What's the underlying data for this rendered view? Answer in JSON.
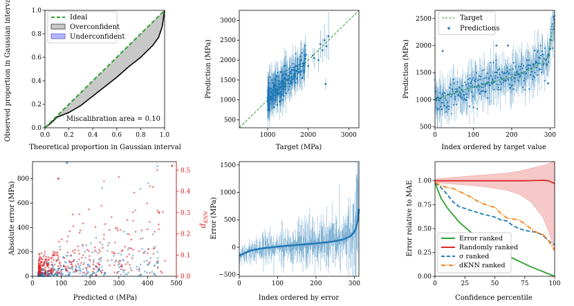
{
  "chart_data": [
    {
      "id": "calibration",
      "type": "area",
      "xlabel": "Theoretical proportion in Gaussian interval",
      "ylabel": "Observed proportion in Gaussian interval",
      "xlim": [
        0,
        1
      ],
      "ylim": [
        0,
        1
      ],
      "xticks": [
        0.0,
        0.2,
        0.4,
        0.6,
        0.8,
        1.0
      ],
      "yticks": [
        0.0,
        0.2,
        0.4,
        0.6,
        0.8,
        1.0
      ],
      "xtick_labels": [
        "0.0",
        "0.2",
        "0.4",
        "0.6",
        "0.8",
        "1.0"
      ],
      "ytick_labels": [
        "0.0",
        "0.2",
        "0.4",
        "0.6",
        "0.8",
        "1.0"
      ],
      "legend": {
        "position": "top-left",
        "entries": [
          "Ideal",
          "Overconfident",
          "Underconfident"
        ]
      },
      "annotation": "Miscalibration area = 0.10",
      "series": [
        {
          "name": "Ideal",
          "style": "dashed",
          "color": "#2ca02c",
          "x": [
            0,
            1
          ],
          "y": [
            0,
            1
          ]
        },
        {
          "name": "Observed",
          "style": "solid",
          "color": "#000000",
          "x": [
            0,
            0.05,
            0.1,
            0.15,
            0.2,
            0.3,
            0.4,
            0.5,
            0.6,
            0.7,
            0.8,
            0.9,
            0.95,
            0.98,
            1.0
          ],
          "y": [
            0,
            0.04,
            0.09,
            0.11,
            0.13,
            0.19,
            0.27,
            0.35,
            0.43,
            0.52,
            0.6,
            0.7,
            0.77,
            0.86,
            1.0
          ]
        }
      ],
      "colors": {
        "overconfident": "#c8c8c8",
        "underconfident": "#b3b3ff"
      }
    },
    {
      "id": "parity",
      "type": "scatter",
      "xlabel": "Target (MPa)",
      "ylabel": "Prediction (MPa)",
      "xlim": [
        300,
        3250
      ],
      "ylim": [
        300,
        3250
      ],
      "xticks": [
        1000,
        2000,
        3000
      ],
      "yticks": [
        500,
        1000,
        1500,
        2000,
        2500,
        3000
      ],
      "xtick_labels": [
        "1000",
        "2000",
        "3000"
      ],
      "ytick_labels": [
        "500",
        "1000",
        "1500",
        "2000",
        "2500",
        "3000"
      ],
      "points": [
        {
          "x": 1000,
          "y": 1050,
          "err": 250
        },
        {
          "x": 1020,
          "y": 1300,
          "err": 400
        },
        {
          "x": 1050,
          "y": 900,
          "err": 300
        },
        {
          "x": 1080,
          "y": 1200,
          "err": 350
        },
        {
          "x": 1100,
          "y": 1500,
          "err": 450
        },
        {
          "x": 1120,
          "y": 1100,
          "err": 200
        },
        {
          "x": 1150,
          "y": 1350,
          "err": 300
        },
        {
          "x": 1180,
          "y": 1000,
          "err": 250
        },
        {
          "x": 1200,
          "y": 1250,
          "err": 400
        },
        {
          "x": 1230,
          "y": 1600,
          "err": 350
        },
        {
          "x": 1250,
          "y": 1150,
          "err": 300
        },
        {
          "x": 1280,
          "y": 1400,
          "err": 250
        },
        {
          "x": 1300,
          "y": 1300,
          "err": 450
        },
        {
          "x": 1330,
          "y": 1700,
          "err": 300
        },
        {
          "x": 1350,
          "y": 1450,
          "err": 350
        },
        {
          "x": 1400,
          "y": 1350,
          "err": 250
        },
        {
          "x": 1420,
          "y": 1550,
          "err": 400
        },
        {
          "x": 1450,
          "y": 1650,
          "err": 300
        },
        {
          "x": 1500,
          "y": 1500,
          "err": 350
        },
        {
          "x": 1550,
          "y": 1400,
          "err": 300
        },
        {
          "x": 1600,
          "y": 1750,
          "err": 400
        },
        {
          "x": 1650,
          "y": 1600,
          "err": 250
        },
        {
          "x": 1700,
          "y": 1850,
          "err": 350
        },
        {
          "x": 1750,
          "y": 1700,
          "err": 300
        },
        {
          "x": 1800,
          "y": 1900,
          "err": 250
        },
        {
          "x": 1850,
          "y": 1550,
          "err": 300
        },
        {
          "x": 1900,
          "y": 1700,
          "err": 200
        },
        {
          "x": 2000,
          "y": 1850,
          "err": 300
        },
        {
          "x": 2150,
          "y": 2050,
          "err": 250
        },
        {
          "x": 2250,
          "y": 2000,
          "err": 300
        },
        {
          "x": 2300,
          "y": 2400,
          "err": 350
        },
        {
          "x": 2350,
          "y": 2250,
          "err": 300
        },
        {
          "x": 2400,
          "y": 2500,
          "err": 400
        },
        {
          "x": 2430,
          "y": 1400,
          "err": 150
        },
        {
          "x": 2450,
          "y": 2350,
          "err": 300
        },
        {
          "x": 2500,
          "y": 2600,
          "err": 600
        }
      ],
      "ideal_line": {
        "style": "dashed",
        "color": "#2ca02c"
      }
    },
    {
      "id": "ordered_prediction",
      "type": "scatter",
      "xlabel": "Index ordered by target value",
      "ylabel": "Prediction (MPa)",
      "xlim": [
        0,
        312
      ],
      "ylim": [
        480,
        2650
      ],
      "xticks": [
        0,
        100,
        200,
        300
      ],
      "yticks": [
        500,
        1000,
        1500,
        2000,
        2500
      ],
      "xtick_labels": [
        "0",
        "100",
        "200",
        "300"
      ],
      "ytick_labels": [
        "500",
        "1000",
        "1500",
        "2000",
        "2500"
      ],
      "legend": {
        "position": "top-left",
        "entries": [
          "Target",
          "Predictions"
        ]
      },
      "target": {
        "x": [
          0,
          50,
          100,
          150,
          200,
          250,
          280,
          295,
          300,
          305,
          312
        ],
        "y": [
          1000,
          1120,
          1230,
          1330,
          1420,
          1560,
          1700,
          1780,
          1950,
          2250,
          2450
        ]
      },
      "n_points": 312,
      "outliers": [
        {
          "x": 20,
          "y": 1900
        },
        {
          "x": 160,
          "y": 2000
        },
        {
          "x": 190,
          "y": 2000
        },
        {
          "x": 295,
          "y": 1300
        }
      ]
    },
    {
      "id": "error_vs_sigma",
      "type": "scatter",
      "xlabel": "Predicted σ (MPa)",
      "ylabel": "Absolute error (MPa)",
      "ylabel_right": "dKNN",
      "xlim": [
        0,
        500
      ],
      "ylim": [
        0,
        940
      ],
      "ylim_right": [
        0,
        0.54
      ],
      "xticks": [
        0,
        100,
        200,
        300,
        400,
        500
      ],
      "yticks": [
        0,
        200,
        400,
        600,
        800
      ],
      "yticks_right": [
        0.0,
        0.1,
        0.2,
        0.3,
        0.4,
        0.5
      ],
      "xtick_labels": [
        "0",
        "100",
        "200",
        "300",
        "400",
        "500"
      ],
      "ytick_labels": [
        "0",
        "200",
        "400",
        "600",
        "800"
      ],
      "ytick_labels_right": [
        "0.0",
        "0.1",
        "0.2",
        "0.3",
        "0.4",
        "0.5"
      ],
      "series": [
        {
          "name": "Absolute error",
          "color": "#1f77b4",
          "n": 312
        },
        {
          "name": "dKNN",
          "color": "#e31a1c",
          "n": 312
        }
      ],
      "highlighted_points": [
        {
          "x": 120,
          "y": 930,
          "series": "Absolute error"
        },
        {
          "x": 485,
          "y": 0.52,
          "series": "dKNN"
        },
        {
          "x": 90,
          "y": 0.46,
          "series": "dKNN"
        },
        {
          "x": 440,
          "y": 0.3,
          "series": "dKNN"
        }
      ]
    },
    {
      "id": "ordered_error",
      "type": "line",
      "xlabel": "Index ordered by error",
      "ylabel": "Error (MPa)",
      "xlim": [
        0,
        312
      ],
      "ylim": [
        -530,
        1560
      ],
      "xticks": [
        0,
        100,
        200,
        300
      ],
      "yticks": [
        -500,
        0,
        500,
        1000,
        1500
      ],
      "xtick_labels": [
        "0",
        "100",
        "200",
        "300"
      ],
      "ytick_labels": [
        "−500",
        "0",
        "500",
        "1000",
        "1500"
      ],
      "error_curve": {
        "x": [
          0,
          30,
          60,
          100,
          150,
          200,
          240,
          270,
          290,
          300,
          305,
          310,
          312
        ],
        "y": [
          -150,
          -60,
          -20,
          10,
          40,
          70,
          100,
          140,
          200,
          280,
          360,
          520,
          700
        ]
      },
      "n_points": 312
    },
    {
      "id": "confidence_curve",
      "type": "line",
      "xlabel": "Confidence percentile",
      "ylabel": "Error relative to MAE",
      "xlim": [
        0,
        100
      ],
      "ylim": [
        0,
        1.2
      ],
      "xticks": [
        0,
        25,
        50,
        75,
        100
      ],
      "yticks": [
        0.0,
        0.25,
        0.5,
        0.75,
        1.0
      ],
      "xtick_labels": [
        "0",
        "25",
        "50",
        "75",
        "100"
      ],
      "ytick_labels": [
        "0.00",
        "0.25",
        "0.50",
        "0.75",
        "1.00"
      ],
      "legend": {
        "position": "bottom-left",
        "entries": [
          "Error ranked",
          "Randomly ranked",
          "σ ranked",
          "dKNN ranked"
        ]
      },
      "series": [
        {
          "name": "Error ranked",
          "color": "#2ca02c",
          "style": "solid",
          "x": [
            0,
            5,
            10,
            20,
            30,
            40,
            50,
            60,
            70,
            80,
            90,
            95,
            100
          ],
          "y": [
            0.98,
            0.82,
            0.72,
            0.57,
            0.46,
            0.37,
            0.29,
            0.22,
            0.16,
            0.1,
            0.05,
            0.025,
            0.0
          ]
        },
        {
          "name": "Randomly ranked",
          "color": "#d62728",
          "style": "solid",
          "x": [
            0,
            25,
            50,
            75,
            90,
            95,
            100
          ],
          "y": [
            1.0,
            1.0,
            1.0,
            1.0,
            1.005,
            1.0,
            0.97
          ]
        },
        {
          "name": "σ ranked",
          "color": "#1f77b4",
          "style": "dashed",
          "x": [
            0,
            5,
            10,
            15,
            20,
            25,
            30,
            40,
            50,
            55,
            60,
            65,
            70,
            75,
            80,
            85,
            90,
            95,
            100
          ],
          "y": [
            0.98,
            0.93,
            0.86,
            0.78,
            0.73,
            0.71,
            0.69,
            0.65,
            0.62,
            0.59,
            0.58,
            0.53,
            0.5,
            0.48,
            0.47,
            0.46,
            0.43,
            0.37,
            0.33
          ]
        },
        {
          "name": "dKNN ranked",
          "color": "#ff7f0e",
          "style": "dashdot",
          "x": [
            0,
            5,
            10,
            15,
            20,
            25,
            30,
            35,
            40,
            45,
            50,
            55,
            60,
            65,
            70,
            75,
            80,
            85,
            90,
            95,
            100
          ],
          "y": [
            0.98,
            0.95,
            0.93,
            0.92,
            0.89,
            0.86,
            0.83,
            0.79,
            0.76,
            0.74,
            0.72,
            0.66,
            0.61,
            0.6,
            0.59,
            0.55,
            0.5,
            0.46,
            0.44,
            0.37,
            0.27
          ]
        }
      ],
      "band": {
        "x": [
          0,
          20,
          40,
          60,
          70,
          80,
          90,
          95,
          100
        ],
        "upper": [
          1.02,
          1.04,
          1.06,
          1.08,
          1.1,
          1.13,
          1.16,
          1.18,
          1.2
        ],
        "lower": [
          0.98,
          0.96,
          0.94,
          0.9,
          0.86,
          0.78,
          0.62,
          0.47,
          0.27
        ]
      },
      "band_color": "#f4b6b6"
    }
  ]
}
